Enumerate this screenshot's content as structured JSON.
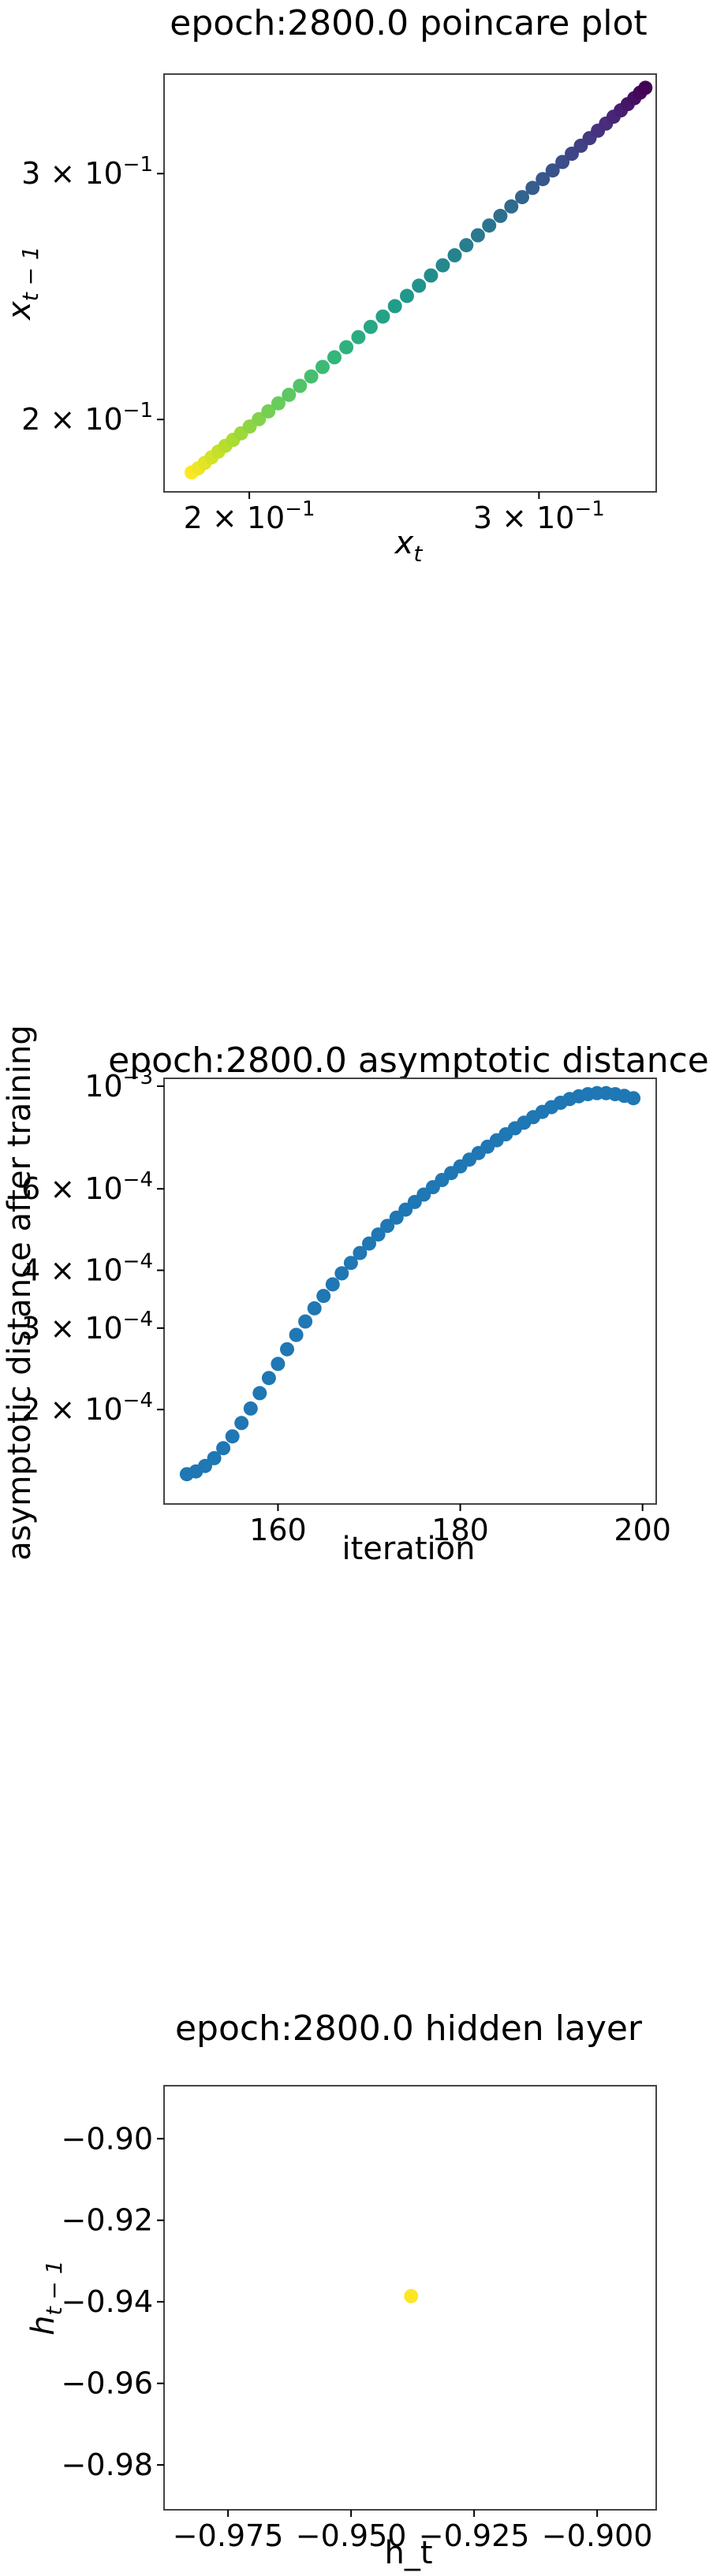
{
  "chart_data": [
    {
      "type": "scatter",
      "title": "epoch:2800.0 poincare plot",
      "xlabel_base": "x",
      "xlabel_sub": "t",
      "ylabel_base": "x",
      "ylabel_sub": "t − 1",
      "xscale": "log",
      "yscale": "log",
      "xlim": [
        0.1775,
        0.3535
      ],
      "ylim": [
        0.1775,
        0.3535
      ],
      "xticks": [
        {
          "value": 0.2,
          "base": "2 × 10",
          "exp": "−1"
        },
        {
          "value": 0.3,
          "base": "3 × 10",
          "exp": "−1"
        }
      ],
      "yticks": [
        {
          "value": 0.2,
          "base": "2 × 10",
          "exp": "−1"
        },
        {
          "value": 0.3,
          "base": "3 × 10",
          "exp": "−1"
        }
      ],
      "colormap": "viridis",
      "colors": {
        "start": "#fde725",
        "end": "#440154"
      },
      "x": [
        0.1845,
        0.1862,
        0.1879,
        0.1897,
        0.1915,
        0.1934,
        0.1955,
        0.1977,
        0.2001,
        0.2027,
        0.2054,
        0.2083,
        0.2114,
        0.2147,
        0.2181,
        0.2216,
        0.2253,
        0.2291,
        0.233,
        0.237,
        0.2411,
        0.2452,
        0.2494,
        0.2536,
        0.2579,
        0.2622,
        0.2666,
        0.271,
        0.2754,
        0.2798,
        0.2842,
        0.2886,
        0.293,
        0.2973,
        0.3016,
        0.3058,
        0.31,
        0.3141,
        0.3181,
        0.322,
        0.3258,
        0.3295,
        0.333,
        0.3364,
        0.3397,
        0.3428,
        0.3456,
        0.3482
      ],
      "y": [
        0.1833,
        0.1845,
        0.1862,
        0.1879,
        0.1897,
        0.1915,
        0.1934,
        0.1955,
        0.1977,
        0.2001,
        0.2027,
        0.2054,
        0.2083,
        0.2114,
        0.2147,
        0.2181,
        0.2216,
        0.2253,
        0.2291,
        0.233,
        0.237,
        0.2411,
        0.2452,
        0.2494,
        0.2536,
        0.2579,
        0.2622,
        0.2666,
        0.271,
        0.2754,
        0.2798,
        0.2842,
        0.2886,
        0.293,
        0.2973,
        0.3016,
        0.3058,
        0.31,
        0.3141,
        0.3181,
        0.322,
        0.3258,
        0.3295,
        0.333,
        0.3364,
        0.3397,
        0.3428,
        0.3456
      ]
    },
    {
      "type": "scatter",
      "title": "epoch:2800.0 asymptotic distance",
      "xlabel": "iteration",
      "ylabel": "asymptotic distance after training",
      "xscale": "linear",
      "yscale": "log",
      "xlim": [
        147.5,
        201.5
      ],
      "ylim": [
        0.000125,
        0.00104
      ],
      "xticks": [
        {
          "value": 160,
          "label": "160"
        },
        {
          "value": 180,
          "label": "180"
        },
        {
          "value": 200,
          "label": "200"
        }
      ],
      "yticks": [
        {
          "value": 0.0002,
          "base": "2 × 10",
          "exp": "−4"
        },
        {
          "value": 0.0003,
          "base": "3 × 10",
          "exp": "−4"
        },
        {
          "value": 0.0004,
          "base": "4 × 10",
          "exp": "−4"
        },
        {
          "value": 0.0006,
          "base": "6 × 10",
          "exp": "−4"
        },
        {
          "value": 0.001,
          "base": "10",
          "exp": "−3"
        }
      ],
      "marker_color": "#1f77b4",
      "x": [
        150,
        151,
        152,
        153,
        154,
        155,
        156,
        157,
        158,
        159,
        160,
        161,
        162,
        163,
        164,
        165,
        166,
        167,
        168,
        169,
        170,
        171,
        172,
        173,
        174,
        175,
        176,
        177,
        178,
        179,
        180,
        181,
        182,
        183,
        184,
        185,
        186,
        187,
        188,
        189,
        190,
        191,
        192,
        193,
        194,
        195,
        196,
        197,
        198,
        199
      ],
      "y": [
        0.000145,
        0.000147,
        0.000151,
        0.000157,
        0.000165,
        0.000175,
        0.000187,
        0.000201,
        0.000217,
        0.000234,
        0.000251,
        0.00027,
        0.00029,
        0.00031,
        0.000331,
        0.000352,
        0.000373,
        0.000394,
        0.000415,
        0.000436,
        0.000457,
        0.000478,
        0.000499,
        0.00052,
        0.000541,
        0.000562,
        0.000583,
        0.000605,
        0.000627,
        0.000649,
        0.000671,
        0.000694,
        0.000717,
        0.00074,
        0.000764,
        0.000787,
        0.000811,
        0.000834,
        0.000857,
        0.00088,
        0.000901,
        0.000921,
        0.000938,
        0.000951,
        0.000961,
        0.000966,
        0.000966,
        0.000961,
        0.000953,
        0.000942
      ]
    },
    {
      "type": "scatter",
      "title": "epoch:2800.0 hidden layer",
      "xlabel": "h_t",
      "ylabel_base": "h",
      "ylabel_sub": "t − 1",
      "xscale": "linear",
      "yscale": "linear",
      "xlim": [
        -0.988,
        -0.888
      ],
      "ylim": [
        -0.991,
        -0.887
      ],
      "xticks": [
        {
          "value": -0.975,
          "label": "−0.975"
        },
        {
          "value": -0.95,
          "label": "−0.950"
        },
        {
          "value": -0.925,
          "label": "−0.925"
        },
        {
          "value": -0.9,
          "label": "−0.900"
        }
      ],
      "yticks": [
        {
          "value": -0.98,
          "label": "−0.98"
        },
        {
          "value": -0.96,
          "label": "−0.96"
        },
        {
          "value": -0.94,
          "label": "−0.94"
        },
        {
          "value": -0.92,
          "label": "−0.92"
        },
        {
          "value": -0.9,
          "label": "−0.90"
        }
      ],
      "marker_color": "#fde725",
      "x": [
        -0.9378
      ],
      "y": [
        -0.9386
      ]
    }
  ]
}
